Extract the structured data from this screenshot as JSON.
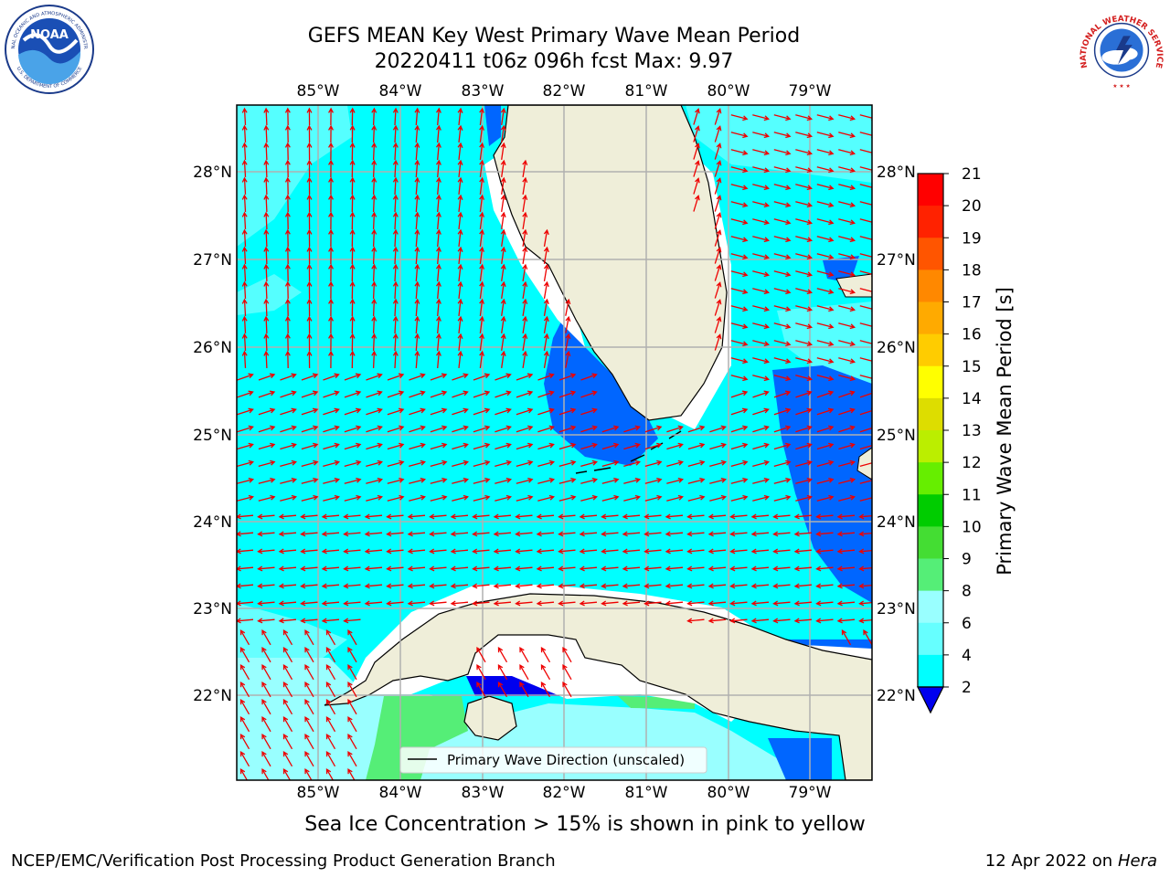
{
  "title_line1": "GEFS MEAN Key West Primary Wave Mean Period",
  "title_line2": "20220411 t06z 096h fcst   Max: 9.97",
  "lon_labels": [
    "85°W",
    "84°W",
    "83°W",
    "82°W",
    "81°W",
    "80°W",
    "79°W"
  ],
  "lat_labels": [
    "28°N",
    "27°N",
    "26°N",
    "25°N",
    "24°N",
    "23°N",
    "22°N"
  ],
  "legend_label": "Primary Wave Direction (unscaled)",
  "colorbar": {
    "label": "Primary Wave Mean Period [s]",
    "ticks": [
      "2",
      "4",
      "6",
      "8",
      "9",
      "10",
      "11",
      "12",
      "13",
      "14",
      "15",
      "16",
      "17",
      "18",
      "19",
      "20",
      "21"
    ],
    "colors": [
      "#0066ff",
      "#00ccff",
      "#00ffff",
      "#66ffff",
      "#99ffff",
      "#55ee77",
      "#44dd33",
      "#00cc00",
      "#66ee00",
      "#bbee00",
      "#dddd00",
      "#ffff00",
      "#ffcc00",
      "#ffaa00",
      "#ff8800",
      "#ff5500",
      "#ff2200",
      "#ff0000"
    ]
  },
  "ice_note": "Sea Ice Concentration > 15% is shown in pink to yellow",
  "footer_left": "NCEP/EMC/Verification Post Processing Product Generation Branch",
  "footer_right_prefix": "12 Apr 2022 on ",
  "footer_right_machine": "Hera",
  "logos": {
    "noaa_text": "NOAA",
    "noaa_ring_top": "NATIONAL OCEANIC AND ATMOSPHERIC ADMINISTRATION",
    "noaa_ring_bottom": "U.S. DEPARTMENT OF COMMERCE",
    "nws_ring": "NATIONAL WEATHER SERVICE"
  }
}
